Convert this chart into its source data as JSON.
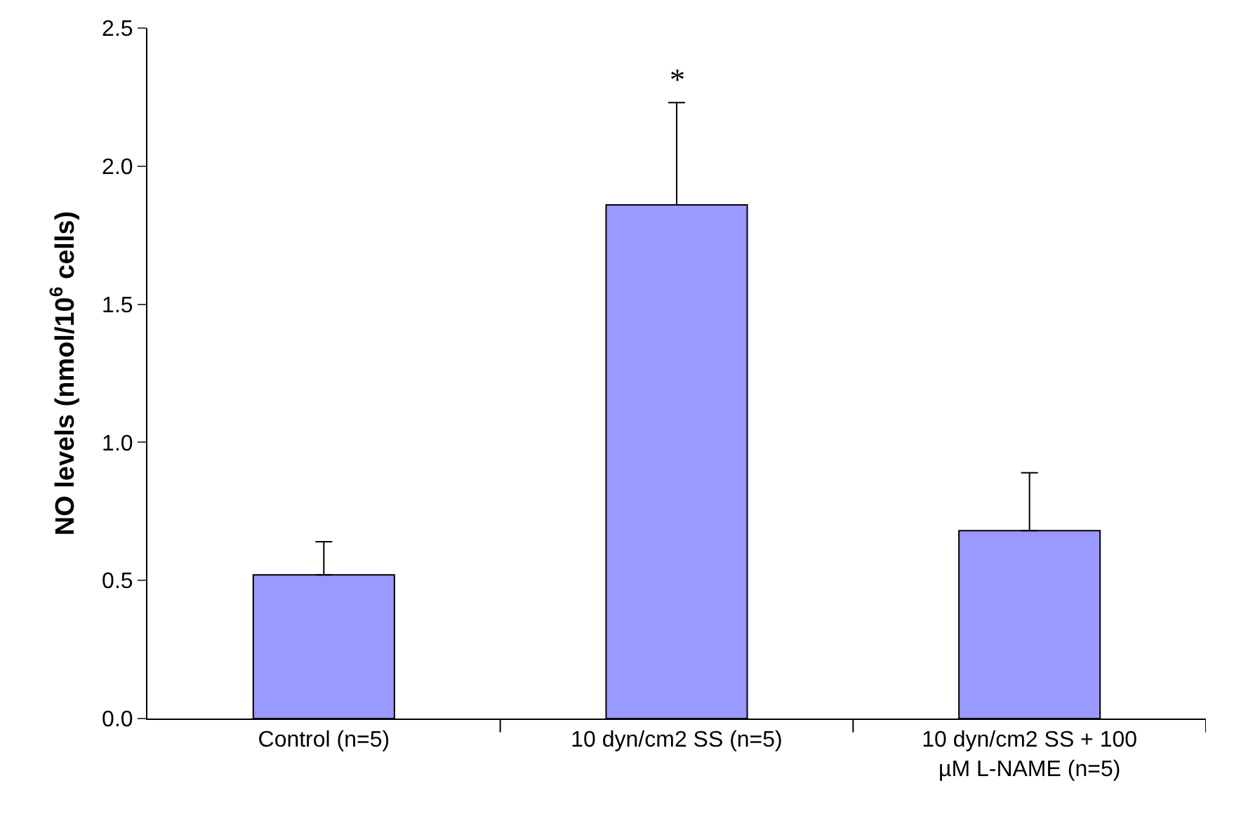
{
  "chart_data": {
    "type": "bar",
    "ylabel": "NO levels (nmol/10$^{6}$ cells)",
    "categories": [
      "Control (n=5)",
      "10 dyn/cm2 SS (n=5)",
      "10 dyn/cm2 SS + 100 µM L-NAME (n=5)"
    ],
    "values": [
      0.52,
      1.86,
      0.68
    ],
    "errors": [
      [
        0.52,
        0.64
      ],
      [
        1.86,
        2.23
      ],
      [
        0.68,
        0.89
      ]
    ],
    "color": "#9999ff",
    "ylim": [
      0,
      2.5
    ],
    "yticks": [
      {
        "value": 0,
        "label": "0.0"
      },
      {
        "value": 0.5,
        "label": "0.5"
      },
      {
        "value": 1,
        "label": "1.0"
      },
      {
        "value": 1.5,
        "label": "1.5"
      },
      {
        "value": 2,
        "label": "2.0"
      },
      {
        "value": 2.5,
        "label": "2.5"
      }
    ],
    "annotations": [
      {
        "text": "*",
        "x": "10 dyn/cm2 SS (n=5)",
        "y": 2.23
      }
    ],
    "grid": false
  }
}
